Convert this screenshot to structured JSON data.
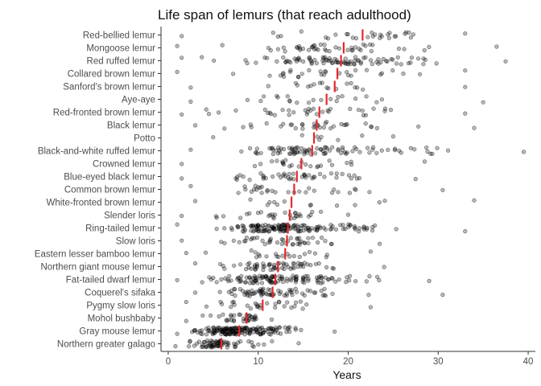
{
  "chart_data": {
    "type": "scatter",
    "title": "Life span of lemurs (that reach adulthood)",
    "xlabel": "Years",
    "ylabel": "",
    "xlim": [
      -0.8,
      40.8
    ],
    "xticks": [
      0,
      10,
      20,
      30,
      40
    ],
    "grid": false,
    "legend": "none",
    "colors": {
      "points": "#000000",
      "mean_line": "#e8262b"
    },
    "categories": [
      {
        "name": "Red-bellied lemur",
        "mean": 21.6,
        "n": 30,
        "min": 1.5,
        "max": 33.0
      },
      {
        "name": "Mongoose lemur",
        "mean": 19.5,
        "n": 45,
        "min": 1.0,
        "max": 36.5
      },
      {
        "name": "Red ruffed lemur",
        "mean": 19.2,
        "n": 90,
        "min": 1.5,
        "max": 37.5
      },
      {
        "name": "Collared brown lemur",
        "mean": 18.8,
        "n": 30,
        "min": 1.0,
        "max": 33.0
      },
      {
        "name": "Sanford's brown lemur",
        "mean": 18.5,
        "n": 18,
        "min": 2.5,
        "max": 33.0
      },
      {
        "name": "Aye-aye",
        "mean": 17.6,
        "n": 22,
        "min": 2.5,
        "max": 35.0
      },
      {
        "name": "Red-fronted brown lemur",
        "mean": 16.8,
        "n": 35,
        "min": 1.5,
        "max": 33.0
      },
      {
        "name": "Black lemur",
        "mean": 16.5,
        "n": 35,
        "min": 3.0,
        "max": 34.0
      },
      {
        "name": "Potto",
        "mean": 16.2,
        "n": 8,
        "min": 5.0,
        "max": 25.0
      },
      {
        "name": "Black-and-white ruffed lemur",
        "mean": 16.0,
        "n": 90,
        "min": 2.5,
        "max": 39.5
      },
      {
        "name": "Crowned lemur",
        "mean": 14.8,
        "n": 25,
        "min": 1.5,
        "max": 28.5
      },
      {
        "name": "Blue-eyed black lemur",
        "mean": 14.3,
        "n": 45,
        "min": 1.5,
        "max": 27.5
      },
      {
        "name": "Common brown lemur",
        "mean": 14.0,
        "n": 30,
        "min": 2.5,
        "max": 30.5
      },
      {
        "name": "White-fronted brown lemur",
        "mean": 13.7,
        "n": 14,
        "min": 3.0,
        "max": 34.0
      },
      {
        "name": "Slender loris",
        "mean": 13.5,
        "n": 30,
        "min": 1.5,
        "max": 20.0
      },
      {
        "name": "Ring-tailed lemur",
        "mean": 13.3,
        "n": 150,
        "min": 1.0,
        "max": 33.0
      },
      {
        "name": "Slow loris",
        "mean": 13.2,
        "n": 45,
        "min": 1.5,
        "max": 23.5
      },
      {
        "name": "Eastern lesser bamboo lemur",
        "mean": 13.0,
        "n": 22,
        "min": 2.0,
        "max": 22.5
      },
      {
        "name": "Northern giant mouse lemur",
        "mean": 12.2,
        "n": 60,
        "min": 3.0,
        "max": 24.0
      },
      {
        "name": "Fat-tailed dwarf lemur",
        "mean": 11.9,
        "n": 120,
        "min": 1.0,
        "max": 29.0
      },
      {
        "name": "Coquerel's sifaka",
        "mean": 11.6,
        "n": 70,
        "min": 3.0,
        "max": 30.5
      },
      {
        "name": "Pygmy slow loris",
        "mean": 10.5,
        "n": 30,
        "min": 2.0,
        "max": 22.5
      },
      {
        "name": "Mohol bushbaby",
        "mean": 8.7,
        "n": 35,
        "min": 2.0,
        "max": 11.5
      },
      {
        "name": "Gray mouse lemur",
        "mean": 7.9,
        "n": 170,
        "min": 1.0,
        "max": 18.5
      },
      {
        "name": "Northern greater galago",
        "mean": 5.9,
        "n": 70,
        "min": 0.8,
        "max": 14.5
      }
    ]
  }
}
